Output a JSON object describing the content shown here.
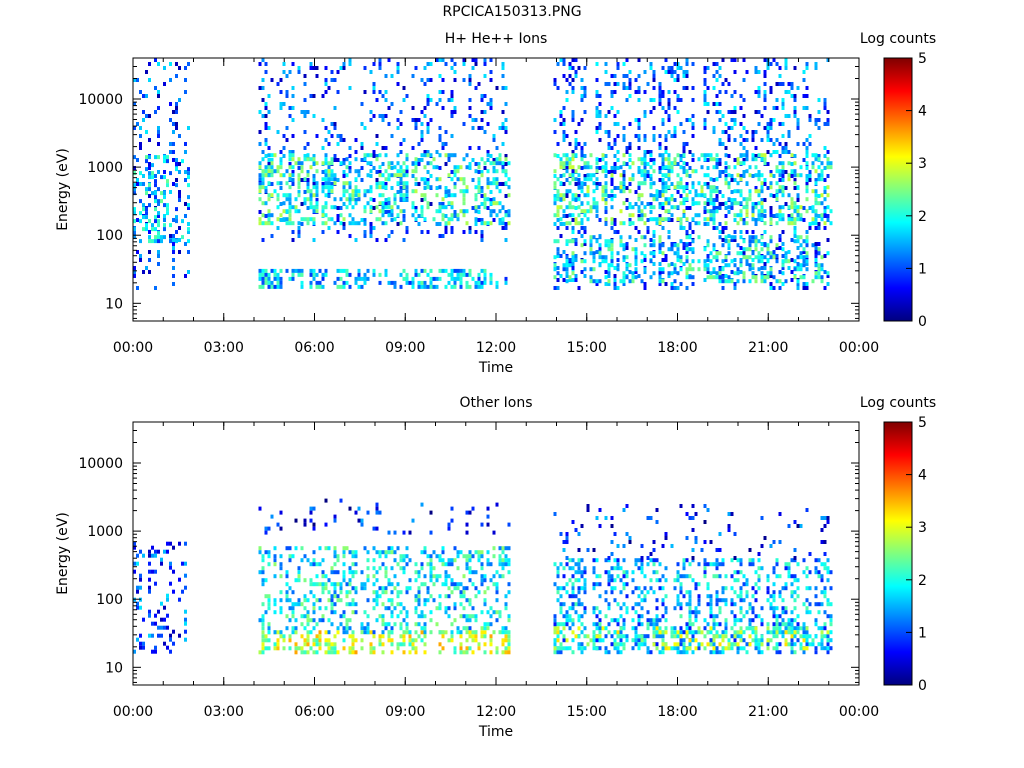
{
  "figure_title": "RPCICA150313.PNG",
  "colormap": [
    "#00007f",
    "#0000ff",
    "#007fff",
    "#00ffff",
    "#7fff7f",
    "#ffff00",
    "#ff7f00",
    "#ff0000",
    "#7f0000"
  ],
  "chart_data": [
    {
      "type": "heatmap",
      "title": "H+ He++ Ions",
      "xlabel": "Time",
      "ylabel": "Energy (eV)",
      "x_unit": "hours",
      "xlim": [
        0,
        24
      ],
      "x_ticks": [
        0,
        3,
        6,
        9,
        12,
        15,
        18,
        21,
        24
      ],
      "x_tick_labels": [
        "00:00",
        "03:00",
        "06:00",
        "09:00",
        "12:00",
        "15:00",
        "18:00",
        "21:00",
        "00:00"
      ],
      "y_scale": "log",
      "ylim": [
        5.5,
        40000
      ],
      "y_ticks": [
        10,
        100,
        1000,
        10000
      ],
      "y_tick_labels": [
        "10",
        "100",
        "1000",
        "10000"
      ],
      "colorbar": {
        "label": "Log counts",
        "range": [
          0,
          5
        ],
        "tick_labels": [
          "0",
          "1",
          "2",
          "3",
          "4",
          "5"
        ]
      },
      "data_gaps_hours": [
        [
          1.85,
          4.15
        ],
        [
          12.4,
          13.9
        ],
        [
          23.1,
          24
        ]
      ],
      "bands": [
        {
          "from": 0.0,
          "to": 1.85,
          "e_low": 17,
          "e_high": 40000,
          "level": 1.0,
          "density": 0.35
        },
        {
          "from": 0.0,
          "to": 1.85,
          "e_low": 80,
          "e_high": 1500,
          "level": 1.6,
          "density": 0.55
        },
        {
          "from": 4.15,
          "to": 12.4,
          "e_low": 17,
          "e_high": 32,
          "level": 1.6,
          "density": 0.85
        },
        {
          "from": 4.15,
          "to": 12.4,
          "e_low": 80,
          "e_high": 40000,
          "level": 1.0,
          "density": 0.3
        },
        {
          "from": 4.15,
          "to": 12.4,
          "e_low": 150,
          "e_high": 1600,
          "level": 2.0,
          "density": 0.65
        },
        {
          "from": 13.9,
          "to": 23.1,
          "e_low": 17,
          "e_high": 40000,
          "level": 1.1,
          "density": 0.45
        },
        {
          "from": 13.9,
          "to": 23.1,
          "e_low": 150,
          "e_high": 1600,
          "level": 2.1,
          "density": 0.7
        },
        {
          "from": 13.9,
          "to": 23.1,
          "e_low": 20,
          "e_high": 100,
          "level": 1.8,
          "density": 0.6
        }
      ]
    },
    {
      "type": "heatmap",
      "title": "Other Ions",
      "xlabel": "Time",
      "ylabel": "Energy (eV)",
      "x_unit": "hours",
      "xlim": [
        0,
        24
      ],
      "x_ticks": [
        0,
        3,
        6,
        9,
        12,
        15,
        18,
        21,
        24
      ],
      "x_tick_labels": [
        "00:00",
        "03:00",
        "06:00",
        "09:00",
        "12:00",
        "15:00",
        "18:00",
        "21:00",
        "00:00"
      ],
      "y_scale": "log",
      "ylim": [
        5.5,
        40000
      ],
      "y_ticks": [
        10,
        100,
        1000,
        10000
      ],
      "y_tick_labels": [
        "10",
        "100",
        "1000",
        "10000"
      ],
      "colorbar": {
        "label": "Log counts",
        "range": [
          0,
          5
        ],
        "tick_labels": [
          "0",
          "1",
          "2",
          "3",
          "4",
          "5"
        ]
      },
      "data_gaps_hours": [
        [
          1.85,
          4.15
        ],
        [
          12.4,
          13.9
        ],
        [
          23.1,
          24
        ]
      ],
      "bands": [
        {
          "from": 0.0,
          "to": 1.85,
          "e_low": 17,
          "e_high": 700,
          "level": 1.0,
          "density": 0.35
        },
        {
          "from": 4.15,
          "to": 12.4,
          "e_low": 17,
          "e_high": 35,
          "level": 2.8,
          "density": 0.9
        },
        {
          "from": 4.15,
          "to": 12.4,
          "e_low": 35,
          "e_high": 600,
          "level": 1.8,
          "density": 0.6
        },
        {
          "from": 4.15,
          "to": 12.4,
          "e_low": 1000,
          "e_high": 3000,
          "level": 0.7,
          "density": 0.15
        },
        {
          "from": 13.9,
          "to": 23.1,
          "e_low": 17,
          "e_high": 400,
          "level": 1.5,
          "density": 0.7
        },
        {
          "from": 13.9,
          "to": 23.1,
          "e_low": 20,
          "e_high": 40,
          "level": 2.5,
          "density": 0.6
        },
        {
          "from": 13.9,
          "to": 23.1,
          "e_low": 400,
          "e_high": 2500,
          "level": 0.8,
          "density": 0.2
        }
      ]
    }
  ]
}
